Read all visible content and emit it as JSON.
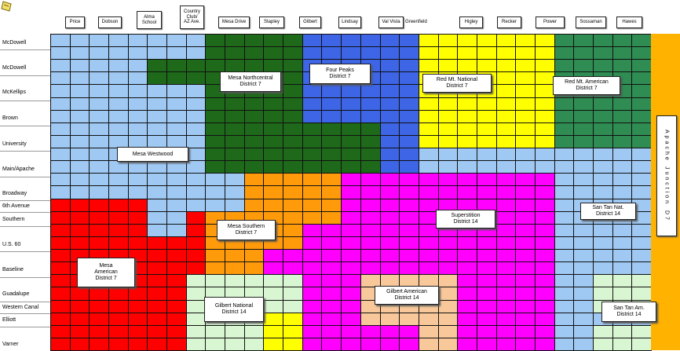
{
  "colors": {
    "light_blue": "#9fc8f3",
    "dark_green": "#1f6a1a",
    "royal_blue": "#3d65e6",
    "yellow": "#ffff00",
    "teal_green": "#2f8c52",
    "orange": "#ff9a0a",
    "magenta": "#ff00ff",
    "red": "#ff0000",
    "pale_green": "#d9f6d2",
    "peach": "#f8c89a",
    "gold": "#ffb300",
    "grid_line": "#111111"
  },
  "column_headers": [
    "Price",
    "Dobson",
    "Alma\nSchool",
    "Country\nClub/\nAZ Ave.",
    "Mesa Drive",
    "Stapley",
    "Gilbert",
    "Lindsay",
    "Val Vista",
    "Greenfield",
    "Higley",
    "Recker",
    "Power",
    "Sossaman",
    "Hawes"
  ],
  "row_labels": [
    "McDowell",
    "McDowell",
    "McKellips",
    "Brown",
    "University",
    "Main/Apache",
    "Broadway",
    "6th Avenue",
    "Southern",
    "U.S. 60",
    "Baseline",
    "Guadalupe",
    "Western Canal",
    "Elliott",
    "Varner"
  ],
  "districts": [
    {
      "id": "mesa-westwood",
      "line1": "Mesa Westwood",
      "line2": ""
    },
    {
      "id": "mesa-northcentral",
      "line1": "Mesa Northcentral",
      "line2": "District 7"
    },
    {
      "id": "four-peaks",
      "line1": "Four Peaks",
      "line2": "District 7"
    },
    {
      "id": "red-mt-national",
      "line1": "Red Mt. National",
      "line2": "District 7"
    },
    {
      "id": "red-mt-american",
      "line1": "Red Mt. American",
      "line2": "District 7"
    },
    {
      "id": "mesa-southern",
      "line1": "Mesa Southern",
      "line2": "District 7"
    },
    {
      "id": "superstition",
      "line1": "Superstition",
      "line2": "District 14"
    },
    {
      "id": "san-tan-nat",
      "line1": "San Tan Nat.",
      "line2": "District 14"
    },
    {
      "id": "mesa-american",
      "line1": "Mesa\nAmerican",
      "line2": "District 7"
    },
    {
      "id": "gilbert-national",
      "line1": "Gilbert National",
      "line2": "District 14"
    },
    {
      "id": "gilbert-american",
      "line1": "Gilbert American",
      "line2": "District 14"
    },
    {
      "id": "san-tan-am",
      "line1": "San Tan Am.",
      "line2": "District 14"
    }
  ],
  "apache_junction": {
    "line1": "Apache",
    "line2": "Junction",
    "line3": "D7"
  }
}
